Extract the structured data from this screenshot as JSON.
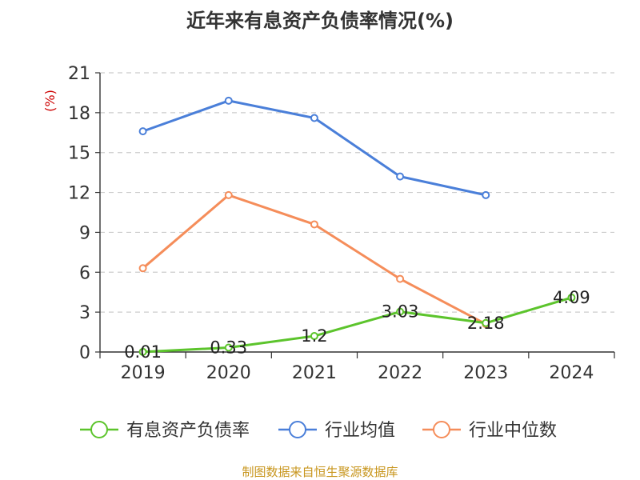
{
  "chart_data": {
    "type": "line",
    "title": "近年来有息资产负债率情况(%)",
    "ylabel": "(%)",
    "categories": [
      "2019",
      "2020",
      "2021",
      "2022",
      "2023",
      "2024"
    ],
    "ylim": [
      0,
      21
    ],
    "yticks": [
      "0",
      "3",
      "6",
      "9",
      "12",
      "15",
      "18",
      "21"
    ],
    "grid": true,
    "legend_position": "bottom",
    "series": [
      {
        "name": "有息资产负债率",
        "color": "#5cc42c",
        "values": [
          0.01,
          0.33,
          1.2,
          3.03,
          2.18,
          4.09
        ],
        "labels": [
          "0.01",
          "0.33",
          "1.2",
          "3.03",
          "2.18",
          "4.09"
        ]
      },
      {
        "name": "行业均值",
        "color": "#4a7fd9",
        "values": [
          16.6,
          18.9,
          17.6,
          13.2,
          11.8,
          null
        ]
      },
      {
        "name": "行业中位数",
        "color": "#f58d5a",
        "values": [
          6.3,
          11.8,
          9.6,
          5.5,
          2.1,
          null
        ]
      }
    ],
    "source": "制图数据来自恒生聚源数据库"
  },
  "colors": {
    "axis": "#333333",
    "grid": "#cccccc",
    "ylabel": "#cc0000",
    "source": "#c8961e"
  }
}
